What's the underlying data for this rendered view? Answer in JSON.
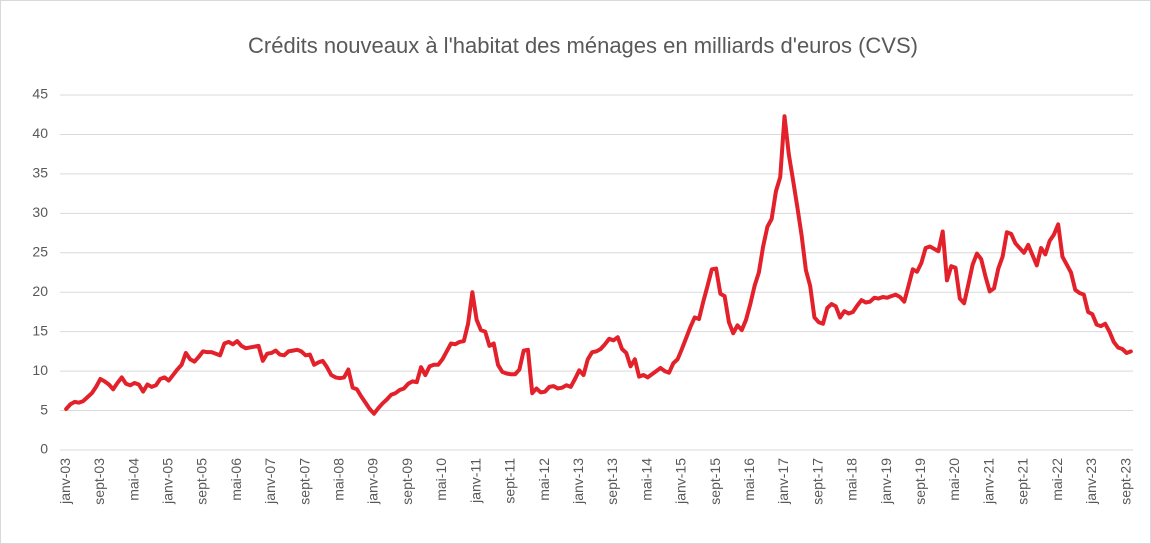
{
  "chart_data": {
    "type": "line",
    "title": "Crédits nouveaux à l'habitat des ménages en milliards d'euros (CVS)",
    "color": "#e3212b",
    "ylim": [
      0,
      45
    ],
    "yticks": [
      0,
      5,
      10,
      15,
      20,
      25,
      30,
      35,
      40,
      45
    ],
    "grid": true,
    "categories": [
      "janv-03",
      null,
      null,
      null,
      null,
      null,
      null,
      null,
      "sept-03",
      null,
      null,
      null,
      null,
      null,
      null,
      null,
      "mai-04",
      null,
      null,
      null,
      null,
      null,
      null,
      null,
      "janv-05",
      null,
      null,
      null,
      null,
      null,
      null,
      null,
      "sept-05",
      null,
      null,
      null,
      null,
      null,
      null,
      null,
      "mai-06",
      null,
      null,
      null,
      null,
      null,
      null,
      null,
      "janv-07",
      null,
      null,
      null,
      null,
      null,
      null,
      null,
      "sept-07",
      null,
      null,
      null,
      null,
      null,
      null,
      null,
      "mai-08",
      null,
      null,
      null,
      null,
      null,
      null,
      null,
      "janv-09",
      null,
      null,
      null,
      null,
      null,
      null,
      null,
      "sept-09",
      null,
      null,
      null,
      null,
      null,
      null,
      null,
      "mai-10",
      null,
      null,
      null,
      null,
      null,
      null,
      null,
      "janv-11",
      null,
      null,
      null,
      null,
      null,
      null,
      null,
      "sept-11",
      null,
      null,
      null,
      null,
      null,
      null,
      null,
      "mai-12",
      null,
      null,
      null,
      null,
      null,
      null,
      null,
      "janv-13",
      null,
      null,
      null,
      null,
      null,
      null,
      null,
      "sept-13",
      null,
      null,
      null,
      null,
      null,
      null,
      null,
      "mai-14",
      null,
      null,
      null,
      null,
      null,
      null,
      null,
      "janv-15",
      null,
      null,
      null,
      null,
      null,
      null,
      null,
      "sept-15",
      null,
      null,
      null,
      null,
      null,
      null,
      null,
      "mai-16",
      null,
      null,
      null,
      null,
      null,
      null,
      null,
      "janv-17",
      null,
      null,
      null,
      null,
      null,
      null,
      null,
      "sept-17",
      null,
      null,
      null,
      null,
      null,
      null,
      null,
      "mai-18",
      null,
      null,
      null,
      null,
      null,
      null,
      null,
      "janv-19",
      null,
      null,
      null,
      null,
      null,
      null,
      null,
      "sept-19",
      null,
      null,
      null,
      null,
      null,
      null,
      null,
      "mai-20",
      null,
      null,
      null,
      null,
      null,
      null,
      null,
      "janv-21",
      null,
      null,
      null,
      null,
      null,
      null,
      null,
      "sept-21",
      null,
      null,
      null,
      null,
      null,
      null,
      null,
      "mai-22",
      null,
      null,
      null,
      null,
      null,
      null,
      null,
      "janv-23",
      null,
      null,
      null,
      null,
      null,
      null,
      null,
      "sept-23",
      null
    ],
    "values": [
      5.2,
      5.8,
      6.1,
      6.0,
      6.2,
      6.7,
      7.2,
      8.0,
      9.0,
      8.7,
      8.3,
      7.7,
      8.5,
      9.2,
      8.4,
      8.2,
      8.5,
      8.3,
      7.4,
      8.3,
      8.0,
      8.2,
      9.0,
      9.2,
      8.8,
      9.5,
      10.2,
      10.8,
      12.3,
      11.5,
      11.2,
      11.8,
      12.5,
      12.4,
      12.4,
      12.2,
      12.0,
      13.5,
      13.7,
      13.4,
      13.8,
      13.2,
      12.9,
      13.0,
      13.1,
      13.2,
      11.3,
      12.2,
      12.3,
      12.6,
      12.1,
      12.0,
      12.5,
      12.6,
      12.7,
      12.5,
      12.0,
      12.1,
      10.8,
      11.1,
      11.3,
      10.5,
      9.5,
      9.2,
      9.1,
      9.2,
      10.2,
      7.9,
      7.7,
      6.8,
      6.0,
      5.2,
      4.6,
      5.3,
      5.9,
      6.4,
      7.0,
      7.2,
      7.6,
      7.8,
      8.4,
      8.7,
      8.6,
      10.5,
      9.5,
      10.6,
      10.8,
      10.8,
      11.5,
      12.5,
      13.5,
      13.4,
      13.7,
      13.8,
      16.0,
      20.0,
      16.5,
      15.2,
      15.0,
      13.2,
      13.5,
      10.8,
      9.9,
      9.7,
      9.6,
      9.6,
      10.2,
      12.6,
      12.7,
      7.2,
      7.8,
      7.3,
      7.4,
      8.0,
      8.1,
      7.8,
      7.9,
      8.2,
      8.0,
      9.0,
      10.1,
      9.5,
      11.5,
      12.4,
      12.5,
      12.8,
      13.4,
      14.1,
      13.9,
      14.3,
      12.8,
      12.3,
      10.6,
      11.5,
      9.3,
      9.5,
      9.2,
      9.6,
      10.0,
      10.4,
      10.0,
      9.8,
      11.0,
      11.5,
      12.8,
      14.2,
      15.6,
      16.8,
      16.6,
      18.8,
      20.8,
      22.9,
      23.0,
      19.8,
      19.5,
      16.2,
      14.8,
      15.8,
      15.2,
      16.5,
      18.5,
      20.8,
      22.5,
      25.8,
      28.3,
      29.3,
      32.8,
      34.6,
      42.3,
      37.5,
      34.2,
      30.8,
      27.2,
      22.8,
      20.8,
      16.8,
      16.2,
      16.0,
      18.0,
      18.5,
      18.2,
      16.8,
      17.6,
      17.3,
      17.5,
      18.3,
      19.0,
      18.7,
      18.8,
      19.3,
      19.2,
      19.4,
      19.3,
      19.5,
      19.7,
      19.4,
      18.8,
      20.8,
      22.9,
      22.6,
      23.7,
      25.6,
      25.8,
      25.5,
      25.2,
      27.7,
      21.5,
      23.3,
      23.1,
      19.2,
      18.6,
      21.0,
      23.5,
      24.9,
      24.2,
      22.0,
      20.1,
      20.5,
      23.0,
      24.5,
      27.6,
      27.4,
      26.2,
      25.6,
      25.0,
      26.0,
      24.7,
      23.4,
      25.6,
      24.8,
      26.5,
      27.3,
      28.6,
      24.5,
      23.5,
      22.5,
      20.3,
      19.9,
      19.7,
      17.5,
      17.2,
      15.9,
      15.7,
      16.0,
      15.0,
      13.7,
      13.0,
      12.8,
      12.3,
      12.5
    ]
  }
}
